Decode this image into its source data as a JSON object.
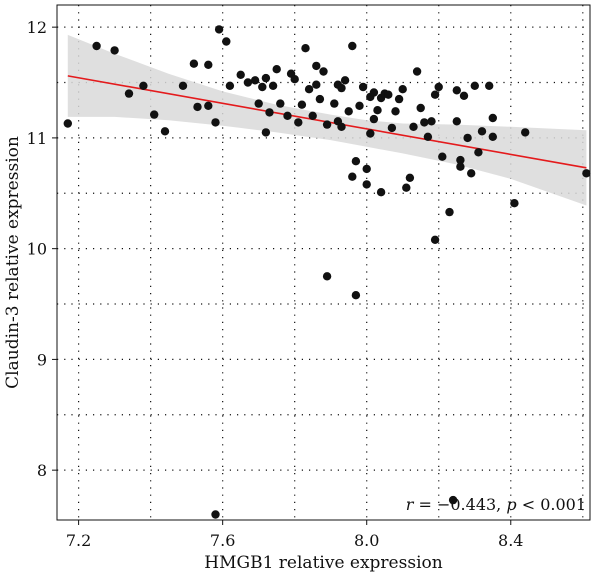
{
  "chart_data": {
    "type": "scatter",
    "title": "",
    "xlabel": "HMGB1 relative expression",
    "ylabel": "Claudin-3 relative expression",
    "xlim": [
      7.14,
      8.62
    ],
    "ylim": [
      7.55,
      12.2
    ],
    "x_ticks": [
      "7.2",
      "7.6",
      "8.0",
      "8.4"
    ],
    "y_ticks": [
      "8",
      "9",
      "10",
      "11",
      "12"
    ],
    "grid": true,
    "points": [
      {
        "x": 7.17,
        "y": 11.13
      },
      {
        "x": 7.25,
        "y": 11.83
      },
      {
        "x": 7.3,
        "y": 11.79
      },
      {
        "x": 7.34,
        "y": 11.4
      },
      {
        "x": 7.38,
        "y": 11.47
      },
      {
        "x": 7.41,
        "y": 11.21
      },
      {
        "x": 7.44,
        "y": 11.06
      },
      {
        "x": 7.49,
        "y": 11.47
      },
      {
        "x": 7.52,
        "y": 11.67
      },
      {
        "x": 7.53,
        "y": 11.28
      },
      {
        "x": 7.56,
        "y": 11.29
      },
      {
        "x": 7.56,
        "y": 11.66
      },
      {
        "x": 7.58,
        "y": 11.14
      },
      {
        "x": 7.59,
        "y": 11.98
      },
      {
        "x": 7.58,
        "y": 7.6
      },
      {
        "x": 7.61,
        "y": 11.87
      },
      {
        "x": 7.62,
        "y": 11.47
      },
      {
        "x": 7.65,
        "y": 11.57
      },
      {
        "x": 7.67,
        "y": 11.5
      },
      {
        "x": 7.69,
        "y": 11.52
      },
      {
        "x": 7.7,
        "y": 11.31
      },
      {
        "x": 7.71,
        "y": 11.46
      },
      {
        "x": 7.72,
        "y": 11.54
      },
      {
        "x": 7.72,
        "y": 11.05
      },
      {
        "x": 7.73,
        "y": 11.23
      },
      {
        "x": 7.74,
        "y": 11.47
      },
      {
        "x": 7.75,
        "y": 11.62
      },
      {
        "x": 7.76,
        "y": 11.31
      },
      {
        "x": 7.78,
        "y": 11.2
      },
      {
        "x": 7.79,
        "y": 11.58
      },
      {
        "x": 7.8,
        "y": 11.53
      },
      {
        "x": 7.81,
        "y": 11.14
      },
      {
        "x": 7.82,
        "y": 11.3
      },
      {
        "x": 7.83,
        "y": 11.81
      },
      {
        "x": 7.84,
        "y": 11.44
      },
      {
        "x": 7.85,
        "y": 11.2
      },
      {
        "x": 7.86,
        "y": 11.65
      },
      {
        "x": 7.86,
        "y": 11.48
      },
      {
        "x": 7.87,
        "y": 11.35
      },
      {
        "x": 7.88,
        "y": 11.6
      },
      {
        "x": 7.89,
        "y": 11.12
      },
      {
        "x": 7.89,
        "y": 9.75
      },
      {
        "x": 7.91,
        "y": 11.31
      },
      {
        "x": 7.92,
        "y": 11.48
      },
      {
        "x": 7.92,
        "y": 11.15
      },
      {
        "x": 7.93,
        "y": 11.1
      },
      {
        "x": 7.93,
        "y": 11.45
      },
      {
        "x": 7.94,
        "y": 11.52
      },
      {
        "x": 7.95,
        "y": 11.24
      },
      {
        "x": 7.96,
        "y": 10.65
      },
      {
        "x": 7.96,
        "y": 11.83
      },
      {
        "x": 7.97,
        "y": 10.79
      },
      {
        "x": 7.97,
        "y": 9.58
      },
      {
        "x": 7.98,
        "y": 11.29
      },
      {
        "x": 7.99,
        "y": 11.46
      },
      {
        "x": 8.0,
        "y": 10.72
      },
      {
        "x": 8.0,
        "y": 10.58
      },
      {
        "x": 8.01,
        "y": 11.37
      },
      {
        "x": 8.01,
        "y": 11.04
      },
      {
        "x": 8.02,
        "y": 11.41
      },
      {
        "x": 8.02,
        "y": 11.17
      },
      {
        "x": 8.03,
        "y": 11.25
      },
      {
        "x": 8.04,
        "y": 11.36
      },
      {
        "x": 8.04,
        "y": 10.51
      },
      {
        "x": 8.05,
        "y": 11.4
      },
      {
        "x": 8.06,
        "y": 11.39
      },
      {
        "x": 8.07,
        "y": 11.09
      },
      {
        "x": 8.08,
        "y": 11.24
      },
      {
        "x": 8.09,
        "y": 11.35
      },
      {
        "x": 8.1,
        "y": 11.44
      },
      {
        "x": 8.11,
        "y": 10.55
      },
      {
        "x": 8.12,
        "y": 10.64
      },
      {
        "x": 8.13,
        "y": 11.1
      },
      {
        "x": 8.14,
        "y": 11.6
      },
      {
        "x": 8.15,
        "y": 11.27
      },
      {
        "x": 8.16,
        "y": 11.14
      },
      {
        "x": 8.17,
        "y": 11.01
      },
      {
        "x": 8.18,
        "y": 11.15
      },
      {
        "x": 8.19,
        "y": 11.39
      },
      {
        "x": 8.19,
        "y": 10.08
      },
      {
        "x": 8.2,
        "y": 11.46
      },
      {
        "x": 8.21,
        "y": 10.83
      },
      {
        "x": 8.23,
        "y": 10.33
      },
      {
        "x": 8.24,
        "y": 7.73
      },
      {
        "x": 8.25,
        "y": 11.43
      },
      {
        "x": 8.25,
        "y": 11.15
      },
      {
        "x": 8.26,
        "y": 10.8
      },
      {
        "x": 8.26,
        "y": 10.74
      },
      {
        "x": 8.27,
        "y": 11.38
      },
      {
        "x": 8.28,
        "y": 11.0
      },
      {
        "x": 8.29,
        "y": 10.68
      },
      {
        "x": 8.3,
        "y": 11.47
      },
      {
        "x": 8.31,
        "y": 10.87
      },
      {
        "x": 8.32,
        "y": 11.06
      },
      {
        "x": 8.34,
        "y": 11.47
      },
      {
        "x": 8.35,
        "y": 11.18
      },
      {
        "x": 8.35,
        "y": 11.01
      },
      {
        "x": 8.41,
        "y": 10.41
      },
      {
        "x": 8.44,
        "y": 11.05
      },
      {
        "x": 8.61,
        "y": 10.68
      }
    ],
    "fit_line": {
      "x": [
        7.17,
        8.61
      ],
      "y": [
        11.56,
        10.73
      ]
    },
    "confidence_band": {
      "x": [
        7.17,
        7.3,
        7.45,
        7.6,
        7.75,
        7.9,
        8.0,
        8.1,
        8.25,
        8.4,
        8.61
      ],
      "upper": [
        11.93,
        11.76,
        11.58,
        11.42,
        11.3,
        11.21,
        11.16,
        11.13,
        11.12,
        11.1,
        11.07
      ],
      "lower": [
        11.19,
        11.19,
        11.16,
        11.11,
        11.05,
        10.98,
        10.92,
        10.86,
        10.76,
        10.63,
        10.39
      ]
    },
    "annotation": {
      "r_text": "r",
      "r_value": " = −0.443, ",
      "p_text": "p",
      "p_value": " < 0.001"
    },
    "colors": {
      "points": "#111111",
      "fit_line": "#e41a1c",
      "band": "#d9d9d9",
      "axis": "#111111",
      "grid": "#111111"
    }
  }
}
